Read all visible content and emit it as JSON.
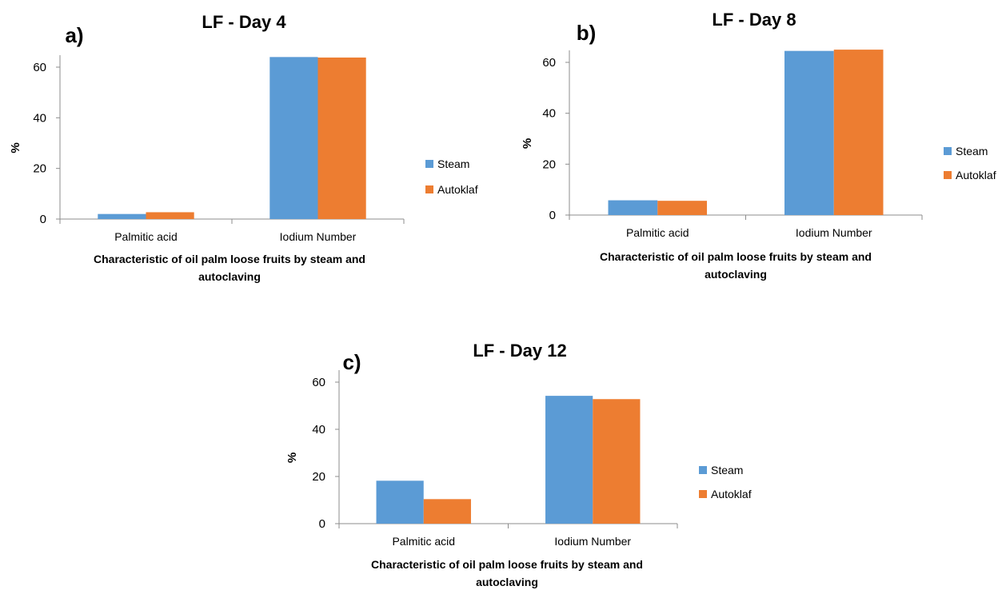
{
  "chart_data": [
    {
      "type": "bar",
      "panel_label": "a)",
      "title": "LF - Day 4",
      "xlabel_lines": [
        "Characteristic of oil palm loose fruits by steam and",
        "autoclaving"
      ],
      "ylabel": "%",
      "categories": [
        "Palmitic acid",
        "Iodium Number"
      ],
      "ylim": [
        0,
        60
      ],
      "yticks": [
        0,
        20,
        40,
        60
      ],
      "series": [
        {
          "name": "Steam",
          "color": "#5B9BD5",
          "values": [
            2.0,
            64.0
          ]
        },
        {
          "name": "Autoklaf",
          "color": "#ED7D31",
          "values": [
            2.7,
            63.8
          ]
        }
      ],
      "legend": "right"
    },
    {
      "type": "bar",
      "panel_label": "b)",
      "title": "LF - Day 8",
      "xlabel_lines": [
        "Characteristic of oil palm loose fruits by steam and",
        "autoclaving"
      ],
      "ylabel": "%",
      "categories": [
        "Palmitic acid",
        "Iodium Number"
      ],
      "ylim": [
        0,
        60
      ],
      "yticks": [
        0,
        20,
        40,
        60
      ],
      "series": [
        {
          "name": "Steam",
          "color": "#5B9BD5",
          "values": [
            5.8,
            64.5
          ]
        },
        {
          "name": "Autoklaf",
          "color": "#ED7D31",
          "values": [
            5.6,
            65.0
          ]
        }
      ],
      "legend": "right"
    },
    {
      "type": "bar",
      "panel_label": "c)",
      "title": "LF - Day 12",
      "xlabel_lines": [
        "Characteristic of oil palm loose fruits by steam and",
        "autoclaving"
      ],
      "ylabel": "%",
      "categories": [
        "Palmitic acid",
        "Iodium Number"
      ],
      "ylim": [
        0,
        60
      ],
      "yticks": [
        0,
        20,
        40,
        60
      ],
      "series": [
        {
          "name": "Steam",
          "color": "#5B9BD5",
          "values": [
            18.2,
            54.2
          ]
        },
        {
          "name": "Autoklaf",
          "color": "#ED7D31",
          "values": [
            10.4,
            52.8
          ]
        }
      ],
      "legend": "right"
    }
  ]
}
